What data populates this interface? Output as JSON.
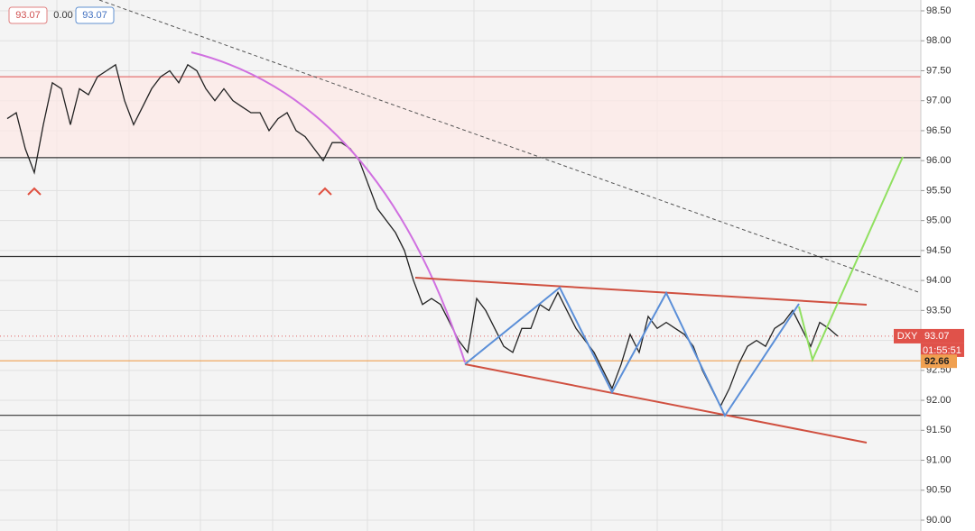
{
  "chart_data": {
    "type": "line",
    "header": {
      "open": "93.07",
      "change": "0.00",
      "close": "93.07"
    },
    "symbol": "DXY",
    "last_price": 93.07,
    "timer": "01:55:51",
    "ylim": [
      90,
      98.5
    ],
    "yticks": [
      {
        "value": 90,
        "label": "90.00"
      },
      {
        "value": 90.5,
        "label": "90.50"
      },
      {
        "value": 91,
        "label": "91.00"
      },
      {
        "value": 91.5,
        "label": "91.50"
      },
      {
        "value": 92,
        "label": "92.00"
      },
      {
        "value": 92.5,
        "label": "92.50"
      },
      {
        "value": 93,
        "label": "93.00"
      },
      {
        "value": 93.5,
        "label": "93.50"
      },
      {
        "value": 94,
        "label": "94.00"
      },
      {
        "value": 94.5,
        "label": "94.50"
      },
      {
        "value": 95,
        "label": "95.00"
      },
      {
        "value": 95.5,
        "label": "95.50"
      },
      {
        "value": 96,
        "label": "96.00"
      },
      {
        "value": 96.5,
        "label": "96.50"
      },
      {
        "value": 97,
        "label": "97.00"
      },
      {
        "value": 97.5,
        "label": "97.50"
      },
      {
        "value": 98,
        "label": "98.00"
      },
      {
        "value": 98.5,
        "label": "98.50"
      }
    ],
    "grid": true,
    "color": "#222222",
    "values": [
      96.7,
      96.8,
      96.2,
      95.8,
      96.6,
      97.3,
      97.2,
      96.6,
      97.2,
      97.1,
      97.4,
      97.5,
      97.6,
      97.0,
      96.6,
      96.9,
      97.2,
      97.4,
      97.5,
      97.3,
      97.6,
      97.5,
      97.2,
      97.0,
      97.2,
      97.0,
      96.9,
      96.8,
      96.8,
      96.5,
      96.7,
      96.8,
      96.5,
      96.4,
      96.2,
      96.0,
      96.3,
      96.3,
      96.2,
      96.0,
      95.6,
      95.2,
      95.0,
      94.8,
      94.5,
      94.0,
      93.6,
      93.7,
      93.6,
      93.3,
      93.0,
      92.8,
      93.7,
      93.5,
      93.2,
      92.9,
      92.8,
      93.2,
      93.2,
      93.6,
      93.5,
      93.8,
      93.5,
      93.2,
      93.0,
      92.8,
      92.5,
      92.2,
      92.6,
      93.1,
      92.8,
      93.4,
      93.2,
      93.3,
      93.2,
      93.1,
      92.9,
      92.5,
      92.2,
      91.9,
      92.2,
      92.6,
      92.9,
      93.0,
      92.9,
      93.2,
      93.3,
      93.5,
      93.2,
      92.9,
      93.3,
      93.2,
      93.07
    ],
    "levels": [
      {
        "value": 97.4,
        "color": "#e57373"
      },
      {
        "value": 96.05,
        "color": "#333333"
      },
      {
        "value": 94.4,
        "color": "#333333"
      },
      {
        "value": 92.66,
        "color": "#f0a050"
      },
      {
        "value": 91.75,
        "color": "#333333"
      }
    ]
  }
}
